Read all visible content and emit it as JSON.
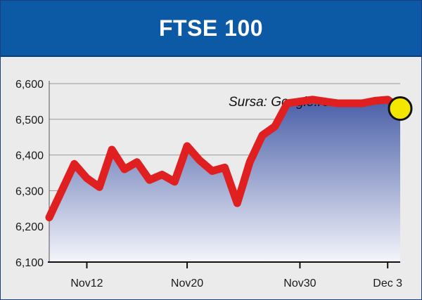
{
  "title": "FTSE 100",
  "source": "Sursa: Google.ro",
  "colors": {
    "header": "#0c5aa6",
    "line": "#e02020",
    "area_top": "#4a5fa8",
    "area_bottom": "#f4f5fb",
    "marker": "#f5e600",
    "background": "#ebebeb",
    "grid": "#9a9a9a"
  },
  "chart_data": {
    "type": "line",
    "title": "FTSE 100",
    "annotation": "Sursa: Google.ro",
    "ylim": [
      6100,
      6600
    ],
    "yticks": [
      6100,
      6200,
      6300,
      6400,
      6500,
      6600
    ],
    "ytick_labels": [
      "6,100",
      "6,200",
      "6,300",
      "6,400",
      "6,500",
      "6,600"
    ],
    "xtick_labels": [
      "Nov12",
      "Nov20",
      "Nov30",
      "Dec 3"
    ],
    "xtick_indices": [
      3,
      11,
      20,
      27
    ],
    "grid": true,
    "series": [
      {
        "values": [
          6225,
          6300,
          6375,
          6335,
          6310,
          6415,
          6360,
          6380,
          6330,
          6345,
          6325,
          6425,
          6385,
          6355,
          6365,
          6265,
          6380,
          6455,
          6480,
          6545,
          6550,
          6555,
          6550,
          6545,
          6545,
          6545,
          6552,
          6555,
          6530
        ]
      }
    ]
  }
}
